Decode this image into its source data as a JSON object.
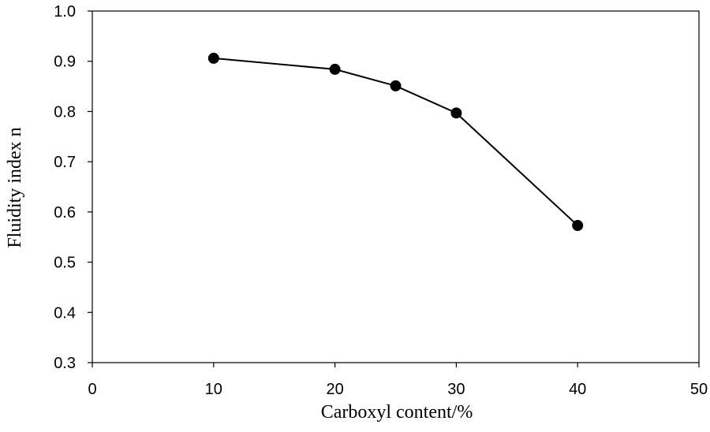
{
  "chart_data": {
    "type": "line",
    "title": "",
    "xlabel": "Carboxyl content/%",
    "ylabel": "Fluidity index n",
    "xlim": [
      0,
      50
    ],
    "ylim": [
      0.3,
      1.0
    ],
    "xticks": [
      0,
      10,
      20,
      30,
      40,
      50
    ],
    "yticks": [
      0.3,
      0.4,
      0.5,
      0.6,
      0.7,
      0.8,
      0.9,
      1.0
    ],
    "xtick_labels": [
      "0",
      "10",
      "20",
      "30",
      "40",
      "50"
    ],
    "ytick_labels": [
      "0.3",
      "0.4",
      "0.5",
      "0.6",
      "0.7",
      "0.8",
      "0.9",
      "1.0"
    ],
    "grid": false,
    "legend": "none",
    "series": [
      {
        "x": [
          10,
          20,
          25,
          30,
          40
        ],
        "y": [
          0.906,
          0.884,
          0.851,
          0.797,
          0.573
        ],
        "color": "#000000",
        "marker": "circle"
      }
    ]
  }
}
